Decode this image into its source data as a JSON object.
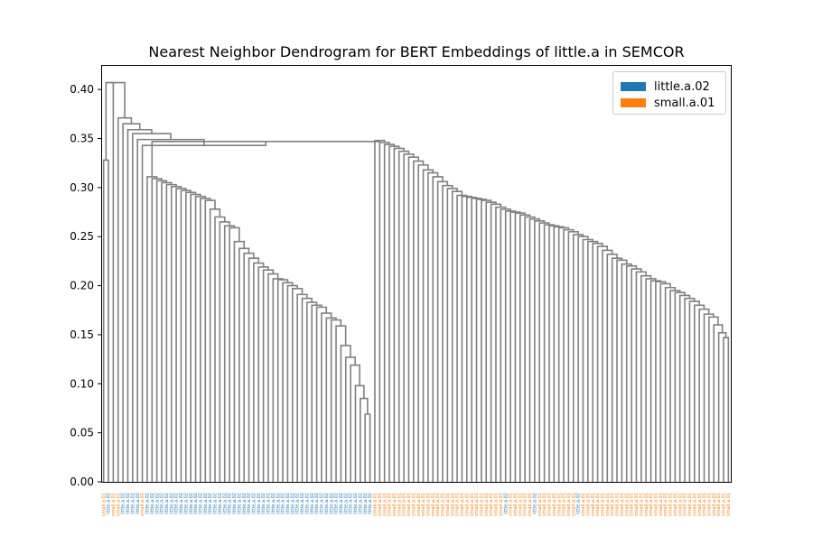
{
  "chart_data": {
    "type": "dendrogram",
    "title": "Nearest Neighbor Dendrogram for BERT Embeddings of little.a in SEMCOR",
    "xlabel": "",
    "ylabel": "",
    "ylim": [
      0,
      0.425
    ],
    "yticks": [
      0.0,
      0.05,
      0.1,
      0.15,
      0.2,
      0.25,
      0.3,
      0.35,
      0.4
    ],
    "ytick_labels": [
      "0.00",
      "0.05",
      "0.10",
      "0.15",
      "0.20",
      "0.25",
      "0.30",
      "0.35",
      "0.40"
    ],
    "grid": false,
    "legend_position": "top-right",
    "link_color": "#808080",
    "legend": [
      {
        "label": "little.a.02",
        "color": "#1f77b4"
      },
      {
        "label": "small.a.01",
        "color": "#ff7f0e"
      }
    ],
    "leaf_groups": [
      {
        "label": "small.a.01",
        "count": 1
      },
      {
        "label": "little.a.02",
        "count": 1
      },
      {
        "label": "small.a.01",
        "count": 2
      },
      {
        "label": "little.a.02",
        "count": 4
      },
      {
        "label": "small.a.01",
        "count": 1
      },
      {
        "label": "little.a.02",
        "count": 47
      },
      {
        "label": "small.a.01",
        "count": 27
      },
      {
        "label": "little.a.02",
        "count": 1
      },
      {
        "label": "small.a.01",
        "count": 5
      },
      {
        "label": "little.a.02",
        "count": 1
      },
      {
        "label": "small.a.01",
        "count": 8
      },
      {
        "label": "little.a.02",
        "count": 1
      },
      {
        "label": "small.a.01",
        "count": 31
      }
    ],
    "merge_heights_main": [
      0.407,
      0.371,
      0.365,
      0.359,
      0.347,
      0.343,
      0.328,
      0.313,
      0.307,
      0.299,
      0.294,
      0.287,
      0.278,
      0.27,
      0.265,
      0.261,
      0.259,
      0.245,
      0.238,
      0.233,
      0.228,
      0.223,
      0.219,
      0.216,
      0.212,
      0.207,
      0.206,
      0.203,
      0.2,
      0.197,
      0.191,
      0.187,
      0.183,
      0.18,
      0.178,
      0.172,
      0.167,
      0.165,
      0.159,
      0.139,
      0.127,
      0.119,
      0.098,
      0.085,
      0.069
    ],
    "merge_heights_right": [
      0.345,
      0.34,
      0.337,
      0.334,
      0.331,
      0.327,
      0.323,
      0.318,
      0.315,
      0.311,
      0.306,
      0.302,
      0.299,
      0.296,
      0.292,
      0.291,
      0.29,
      0.289,
      0.288,
      0.287,
      0.285,
      0.283,
      0.28,
      0.278,
      0.276,
      0.275,
      0.274,
      0.272,
      0.27,
      0.268,
      0.266,
      0.264,
      0.262,
      0.261,
      0.26,
      0.259,
      0.257,
      0.255,
      0.252,
      0.25,
      0.247,
      0.245,
      0.243,
      0.24,
      0.236,
      0.232,
      0.228,
      0.226,
      0.222,
      0.22,
      0.217,
      0.214,
      0.21,
      0.207,
      0.205,
      0.204,
      0.202,
      0.198,
      0.195,
      0.193,
      0.19,
      0.187,
      0.184,
      0.18,
      0.176,
      0.171,
      0.168,
      0.16,
      0.152,
      0.147
    ]
  }
}
